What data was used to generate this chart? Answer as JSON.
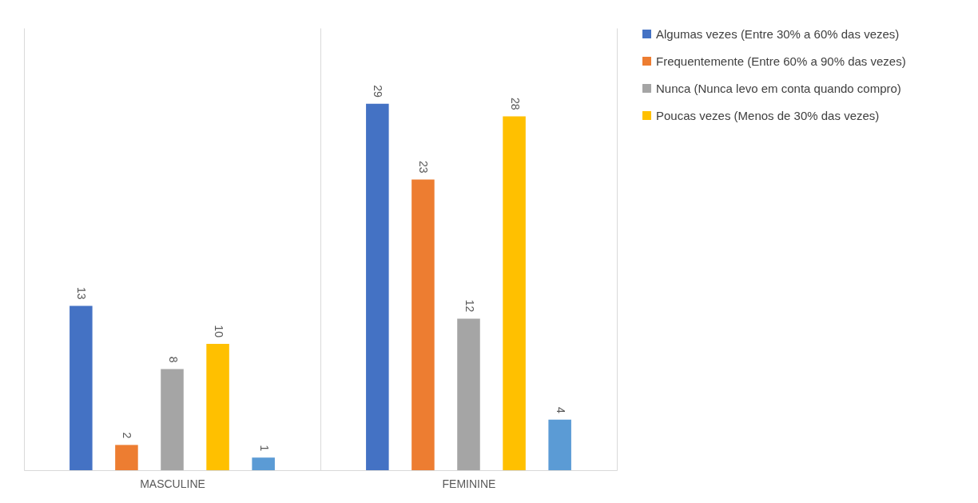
{
  "chart_data": {
    "type": "bar",
    "categories": [
      "MASCULINE",
      "FEMININE"
    ],
    "series": [
      {
        "name": "Algumas vezes (Entre 30% a 60% das vezes)",
        "color": "#4472c4",
        "values": [
          13,
          29
        ]
      },
      {
        "name": "Frequentemente (Entre 60% a 90% das vezes)",
        "color": "#ed7d31",
        "values": [
          2,
          23
        ]
      },
      {
        "name": "Nunca (Nunca levo em conta quando compro)",
        "color": "#a5a5a5",
        "values": [
          8,
          12
        ]
      },
      {
        "name": "Poucas vezes (Menos de 30% das vezes)",
        "color": "#ffc000",
        "values": [
          10,
          28
        ]
      },
      {
        "color": "#5b9bd5",
        "values": [
          1,
          4
        ]
      }
    ],
    "ylim": [
      0,
      35
    ],
    "data_labels": true,
    "grid": "x",
    "legend": "top right",
    "tick_labels": "x"
  }
}
